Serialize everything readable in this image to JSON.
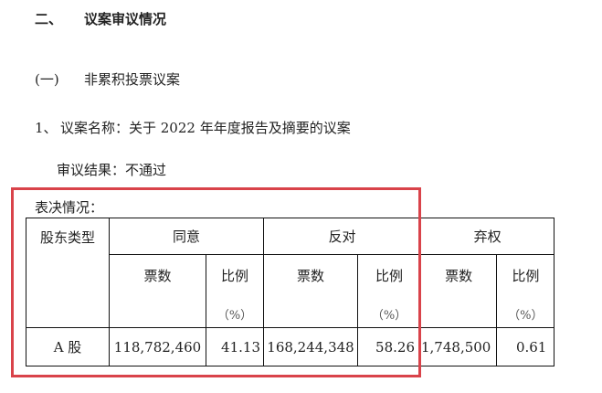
{
  "section": {
    "number": "二、",
    "title": "议案审议情况"
  },
  "subsection": {
    "number": "(一)",
    "title": "非累积投票议案"
  },
  "motion": {
    "number": "1、",
    "name": "议案名称：关于 2022 年年度报告及摘要的议案",
    "result": "审议结果：不通过"
  },
  "vote_label": "表决情况：",
  "table": {
    "headers": {
      "type": "股东类型",
      "agree": "同意",
      "oppose": "反对",
      "abstain": "弃权",
      "votes": "票数",
      "ratio": "比例",
      "pct": "（%）"
    },
    "rows": [
      {
        "type": "A 股",
        "agree_votes": "118,782,460",
        "agree_ratio": "41.13",
        "oppose_votes": "168,244,348",
        "oppose_ratio": "58.26",
        "abstain_votes": "1,748,500",
        "abstain_ratio": "0.61"
      }
    ]
  },
  "colors": {
    "highlight_box": "#d9434a"
  }
}
